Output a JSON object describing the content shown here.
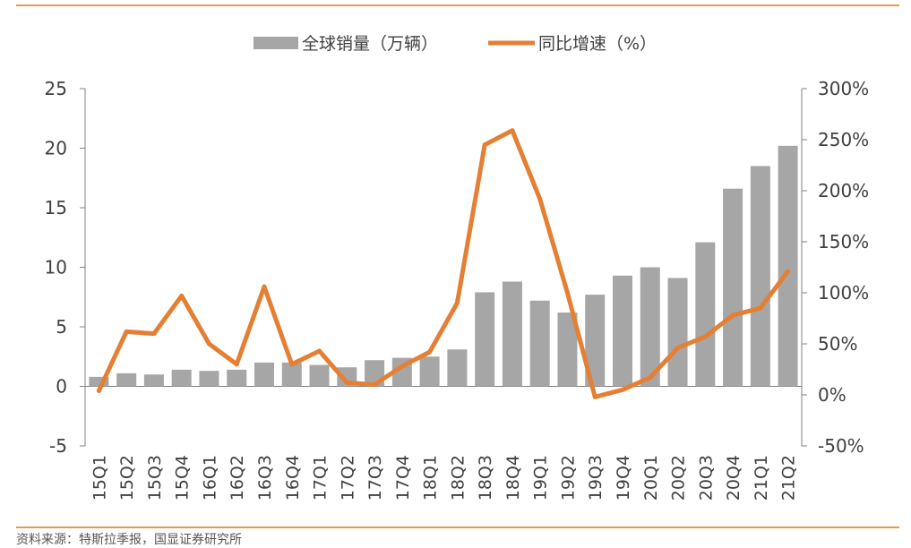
{
  "colors": {
    "rule": "#E29A4F",
    "bar": "#A6A6A6",
    "line": "#E47F34",
    "axis": "#808080",
    "text": "#404040"
  },
  "source_note": "资料来源：特斯拉季报，国显证券研究所",
  "chart_data": {
    "type": "bar",
    "categories": [
      "15Q1",
      "15Q2",
      "15Q3",
      "15Q4",
      "16Q1",
      "16Q2",
      "16Q3",
      "16Q4",
      "17Q1",
      "17Q2",
      "17Q3",
      "17Q4",
      "18Q1",
      "18Q2",
      "18Q3",
      "18Q4",
      "19Q1",
      "19Q2",
      "19Q3",
      "19Q4",
      "20Q1",
      "20Q2",
      "20Q3",
      "20Q4",
      "21Q1",
      "21Q2"
    ],
    "series": [
      {
        "name": "全球销量（万辆）",
        "type": "bar",
        "axis": "left",
        "values": [
          0.8,
          1.1,
          1.0,
          1.4,
          1.3,
          1.4,
          2.0,
          2.0,
          1.8,
          1.6,
          2.2,
          2.4,
          2.5,
          3.1,
          7.9,
          8.8,
          7.2,
          6.2,
          7.7,
          9.3,
          10.0,
          9.1,
          12.1,
          16.6,
          18.5,
          20.2
        ]
      },
      {
        "name": "同比增速（%）",
        "type": "line",
        "axis": "right",
        "values": [
          4,
          62,
          60,
          97,
          50,
          30,
          106,
          30,
          43,
          12,
          10,
          28,
          42,
          90,
          245,
          259,
          192,
          100,
          -2,
          5,
          17,
          46,
          57,
          78,
          85,
          121
        ]
      }
    ],
    "y_left": {
      "lim": [
        -5,
        25
      ],
      "ticks": [
        -5,
        0,
        5,
        10,
        15,
        20,
        25
      ],
      "labels": [
        "-5",
        "0",
        "5",
        "10",
        "15",
        "20",
        "25"
      ]
    },
    "y_right": {
      "lim": [
        -50,
        300
      ],
      "ticks": [
        -50,
        0,
        50,
        100,
        150,
        200,
        250,
        300
      ],
      "labels": [
        "-50%",
        "0%",
        "50%",
        "100%",
        "150%",
        "200%",
        "250%",
        "300%"
      ]
    },
    "legend_position": "top-center",
    "grid": false
  }
}
